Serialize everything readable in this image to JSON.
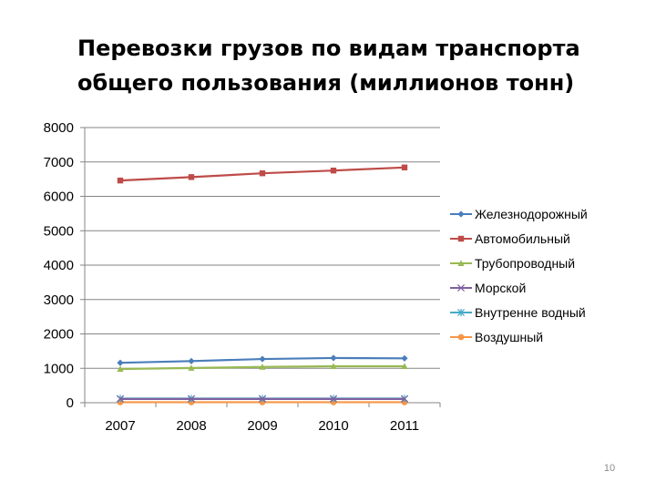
{
  "slide": {
    "title_line1": "Перевозки грузов по видам транспорта",
    "title_line2": "общего пользования (миллионов тонн)",
    "page_number": "10"
  },
  "chart_data": {
    "type": "line",
    "title": "Перевозки грузов по видам транспорта общего пользования (миллионов тонн)",
    "categories": [
      "2007",
      "2008",
      "2009",
      "2010",
      "2011"
    ],
    "ylim": [
      0,
      8000
    ],
    "yticks": [
      0,
      1000,
      2000,
      3000,
      4000,
      5000,
      6000,
      7000,
      8000
    ],
    "grid": true,
    "legend_position": "right",
    "series": [
      {
        "name": "Железнодорожный",
        "values": [
          1160,
          1210,
          1270,
          1300,
          1290
        ],
        "color": "#4a7ebb",
        "marker": "diamond"
      },
      {
        "name": "Автомобильный",
        "values": [
          6460,
          6560,
          6670,
          6750,
          6840
        ],
        "color": "#be4b48",
        "marker": "square"
      },
      {
        "name": "Трубопроводный",
        "values": [
          980,
          1010,
          1040,
          1060,
          1060
        ],
        "color": "#98b954",
        "marker": "triangle"
      },
      {
        "name": "Морской",
        "values": [
          110,
          110,
          110,
          110,
          110
        ],
        "color": "#7d60a0",
        "marker": "x"
      },
      {
        "name": "Внутренне водный",
        "values": [
          120,
          120,
          120,
          120,
          120
        ],
        "color": "#46aac5",
        "marker": "star"
      },
      {
        "name": "Воздушный",
        "values": [
          15,
          15,
          15,
          15,
          15
        ],
        "color": "#f79646",
        "marker": "circle"
      }
    ]
  }
}
